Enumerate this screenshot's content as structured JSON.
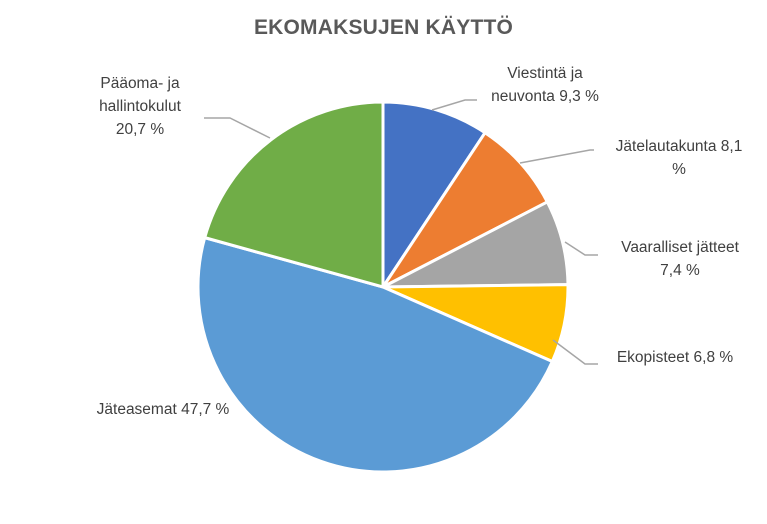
{
  "chart_data": {
    "type": "pie",
    "title": "EKOMAKSUJEN KÄYTTÖ",
    "categories": [
      "Viestintä ja neuvonta",
      "Jätelautakunta",
      "Vaaralliset jätteet",
      "Ekopisteet",
      "Jäteasemat",
      "Pääoma- ja hallintokulut"
    ],
    "values": [
      9.3,
      8.1,
      7.4,
      6.8,
      47.7,
      20.7
    ],
    "colors": [
      "#4472C4",
      "#ED7D31",
      "#A5A5A5",
      "#FFC000",
      "#5B9BD5",
      "#70AD47"
    ],
    "data_labels": [
      [
        "Viestintä ja",
        "neuvonta 9,3 %"
      ],
      [
        "Jätelautakunta 8,1",
        "%"
      ],
      [
        "Vaaralliset jätteet",
        "7,4 %"
      ],
      [
        "Ekopisteet 6,8 %"
      ],
      [
        "Jäteasemat 47,7 %"
      ],
      [
        "Pääoma- ja",
        "hallintokulut",
        "20,7 %"
      ]
    ],
    "unit": "%",
    "legend": "none"
  }
}
